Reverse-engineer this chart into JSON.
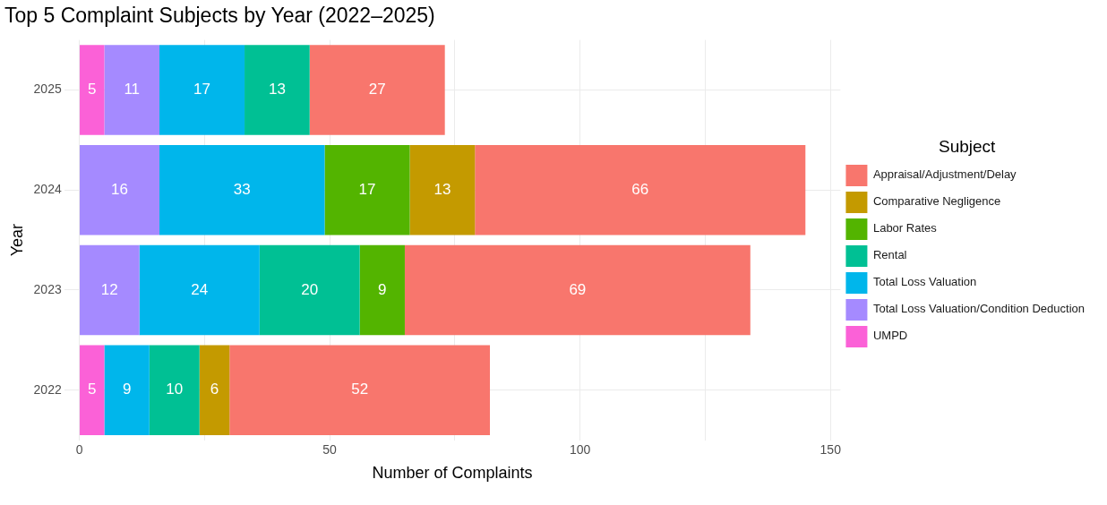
{
  "chart_data": {
    "type": "bar",
    "orientation": "horizontal",
    "stacked": true,
    "title": "Top 5 Complaint Subjects by Year (2022–2025)",
    "xlabel": "Number of Complaints",
    "ylabel": "Year",
    "legend_title": "Subject",
    "legend": "right",
    "grid": true,
    "data_labels": true,
    "categories": [
      "2025",
      "2024",
      "2023",
      "2022"
    ],
    "xlim": [
      -3,
      152
    ],
    "xticks": [
      0,
      {
        "value": 25,
        "label": null
      },
      50,
      {
        "value": 75,
        "label": null
      },
      100,
      {
        "value": 125,
        "label": null
      },
      150
    ],
    "series": [
      {
        "name": "UMPD",
        "color": "#fb61d7",
        "values": [
          5,
          null,
          null,
          5
        ]
      },
      {
        "name": "Total Loss Valuation/Condition Deduction",
        "color": "#a58aff",
        "values": [
          11,
          16,
          12,
          null
        ]
      },
      {
        "name": "Total Loss Valuation",
        "color": "#00b6eb",
        "values": [
          17,
          33,
          24,
          9
        ]
      },
      {
        "name": "Rental",
        "color": "#00c094",
        "values": [
          13,
          null,
          20,
          10
        ]
      },
      {
        "name": "Labor Rates",
        "color": "#53b400",
        "values": [
          null,
          17,
          9,
          null
        ]
      },
      {
        "name": "Comparative Negligence",
        "color": "#c49a00",
        "values": [
          null,
          13,
          null,
          6
        ]
      },
      {
        "name": "Appraisal/Adjustment/Delay",
        "color": "#f8766d",
        "values": [
          27,
          66,
          69,
          52
        ]
      }
    ]
  }
}
